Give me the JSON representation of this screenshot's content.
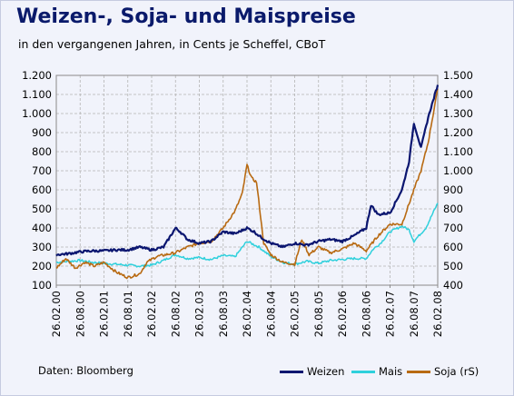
{
  "title": "Weizen-, Soja- und Maispreise",
  "subtitle": "in den vergangenen Jahren, in Cents je Scheffel, CBoT",
  "source": "Daten: Bloomberg",
  "legend": {
    "weizen": "Weizen",
    "mais": "Mais",
    "soja": "Soja (rS)"
  },
  "colors": {
    "weizen": "#0b1670",
    "mais": "#2fd0dc",
    "soja": "#b86a12",
    "background": "#f1f3fb",
    "title": "#0a1a6b",
    "grid": "#b4b4b4"
  },
  "chart_data": {
    "type": "line",
    "title": "Weizen-, Soja- und Maispreise",
    "subtitle": "in den vergangenen Jahren, in Cents je Scheffel, CBoT",
    "x_tick_labels": [
      "26.02.00",
      "26.08.00",
      "26.02.01",
      "26.08.01",
      "26.02.02",
      "26.08.02",
      "26.02.03",
      "26.08.03",
      "26.02.04",
      "26.08.04",
      "26.02.05",
      "26.08.05",
      "26.02.06",
      "26.08.06",
      "26.02.07",
      "26.08.07",
      "26.02.08"
    ],
    "y_left": {
      "ylim": [
        100,
        1200
      ],
      "ticks": [
        "100",
        "200",
        "300",
        "400",
        "500",
        "600",
        "700",
        "800",
        "900",
        "1.000",
        "1.100",
        "1.200"
      ],
      "tick_values": [
        100,
        200,
        300,
        400,
        500,
        600,
        700,
        800,
        900,
        1000,
        1100,
        1200
      ]
    },
    "y_right": {
      "ylim": [
        400,
        1500
      ],
      "ticks": [
        "400",
        "500",
        "600",
        "700",
        "800",
        "900",
        "1.000",
        "1.100",
        "1.200",
        "1.300",
        "1.400",
        "1.500"
      ],
      "tick_values": [
        400,
        500,
        600,
        700,
        800,
        900,
        1000,
        1100,
        1200,
        1300,
        1400,
        1500
      ]
    },
    "grid": true,
    "legend_position": "bottom-right",
    "series": [
      {
        "name": "Weizen",
        "axis": "left",
        "x": [
          0,
          0.5,
          1,
          1.5,
          2,
          2.5,
          3,
          3.5,
          4,
          4.5,
          5,
          5.2,
          5.5,
          6,
          6.5,
          7,
          7.5,
          8,
          8.3,
          8.6,
          9,
          9.5,
          10,
          10.5,
          11,
          11.5,
          12,
          12.5,
          13,
          13.2,
          13.5,
          14,
          14.5,
          14.8,
          15,
          15.3,
          15.6,
          16
        ],
        "values": [
          260,
          265,
          275,
          280,
          280,
          285,
          285,
          300,
          285,
          300,
          400,
          380,
          340,
          320,
          330,
          380,
          370,
          400,
          380,
          350,
          320,
          300,
          320,
          310,
          330,
          340,
          330,
          360,
          400,
          520,
          470,
          480,
          600,
          750,
          950,
          820,
          980,
          1150
        ]
      },
      {
        "name": "Mais",
        "axis": "left",
        "x": [
          0,
          0.5,
          1,
          1.5,
          2,
          2.5,
          3,
          3.5,
          4,
          4.5,
          5,
          5.5,
          6,
          6.5,
          7,
          7.5,
          8,
          8.5,
          9,
          9.5,
          10,
          10.5,
          11,
          11.5,
          12,
          12.5,
          13,
          13.3,
          13.6,
          14,
          14.5,
          14.8,
          15,
          15.5,
          16
        ],
        "values": [
          220,
          225,
          230,
          220,
          215,
          210,
          205,
          200,
          205,
          230,
          260,
          240,
          245,
          235,
          255,
          250,
          330,
          300,
          250,
          220,
          210,
          225,
          215,
          230,
          235,
          240,
          240,
          290,
          320,
          380,
          410,
          390,
          330,
          400,
          530
        ]
      },
      {
        "name": "Soja (rS)",
        "axis": "right",
        "x": [
          0,
          0.4,
          0.8,
          1.2,
          1.6,
          2,
          2.5,
          3,
          3.5,
          3.8,
          4.2,
          4.6,
          5,
          5.5,
          6,
          6.5,
          7,
          7.5,
          7.8,
          8,
          8.2,
          8.4,
          8.7,
          9,
          9.5,
          10,
          10.3,
          10.6,
          11,
          11.5,
          12,
          12.5,
          13,
          13.5,
          14,
          14.5,
          15,
          15.3,
          15.6,
          16
        ],
        "values": [
          490,
          540,
          490,
          520,
          500,
          520,
          470,
          440,
          460,
          520,
          550,
          560,
          570,
          600,
          620,
          630,
          700,
          790,
          880,
          1030,
          960,
          940,
          620,
          560,
          520,
          510,
          640,
          560,
          600,
          570,
          590,
          620,
          580,
          660,
          720,
          720,
          900,
          1000,
          1150,
          1430
        ]
      }
    ]
  }
}
